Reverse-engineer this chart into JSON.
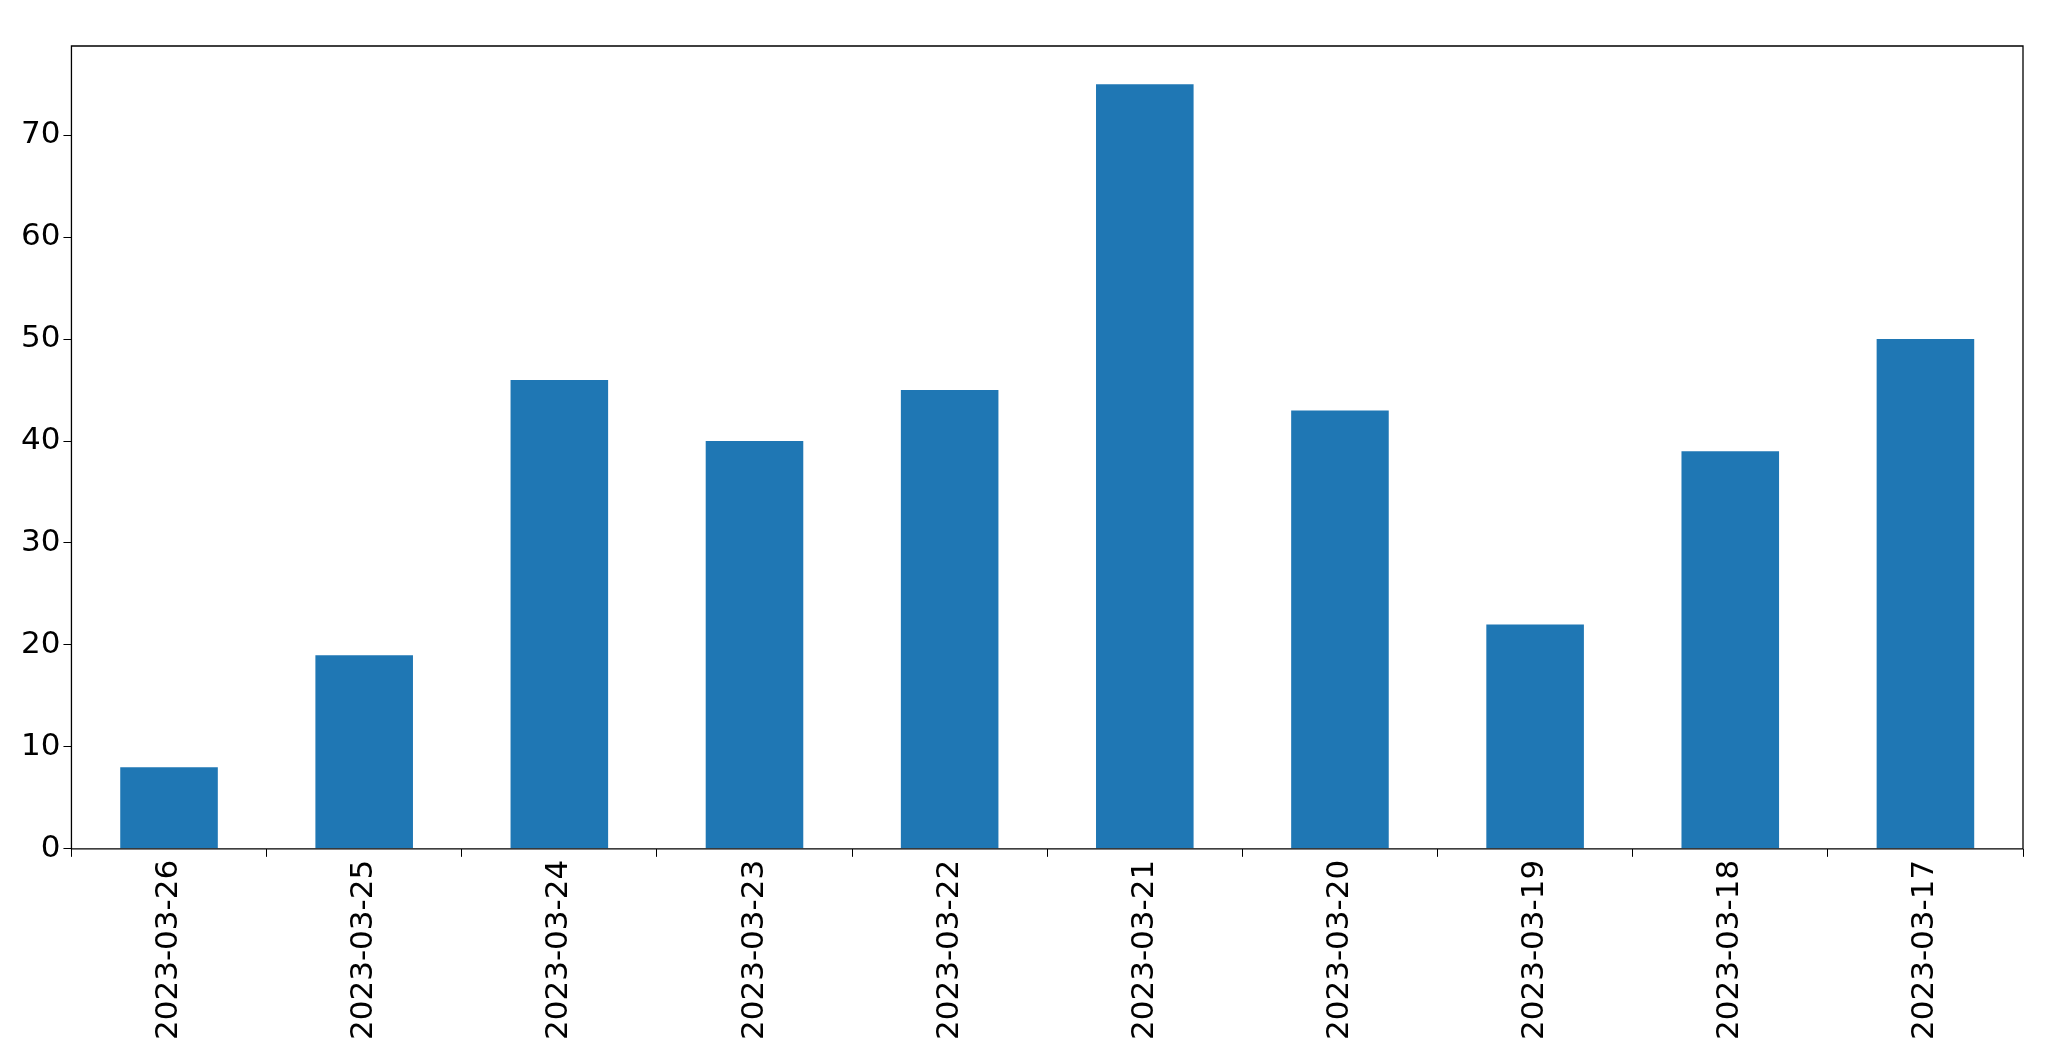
{
  "chart_data": {
    "type": "bar",
    "categories": [
      "2023-03-26",
      "2023-03-25",
      "2023-03-24",
      "2023-03-23",
      "2023-03-22",
      "2023-03-21",
      "2023-03-20",
      "2023-03-19",
      "2023-03-18",
      "2023-03-17"
    ],
    "values": [
      8,
      19,
      46,
      40,
      45,
      75,
      43,
      22,
      39,
      50
    ],
    "color": "#1f77b4",
    "ylim": [
      0,
      78.75
    ],
    "yticks": [
      0,
      10,
      20,
      30,
      40,
      50,
      60,
      70
    ]
  }
}
